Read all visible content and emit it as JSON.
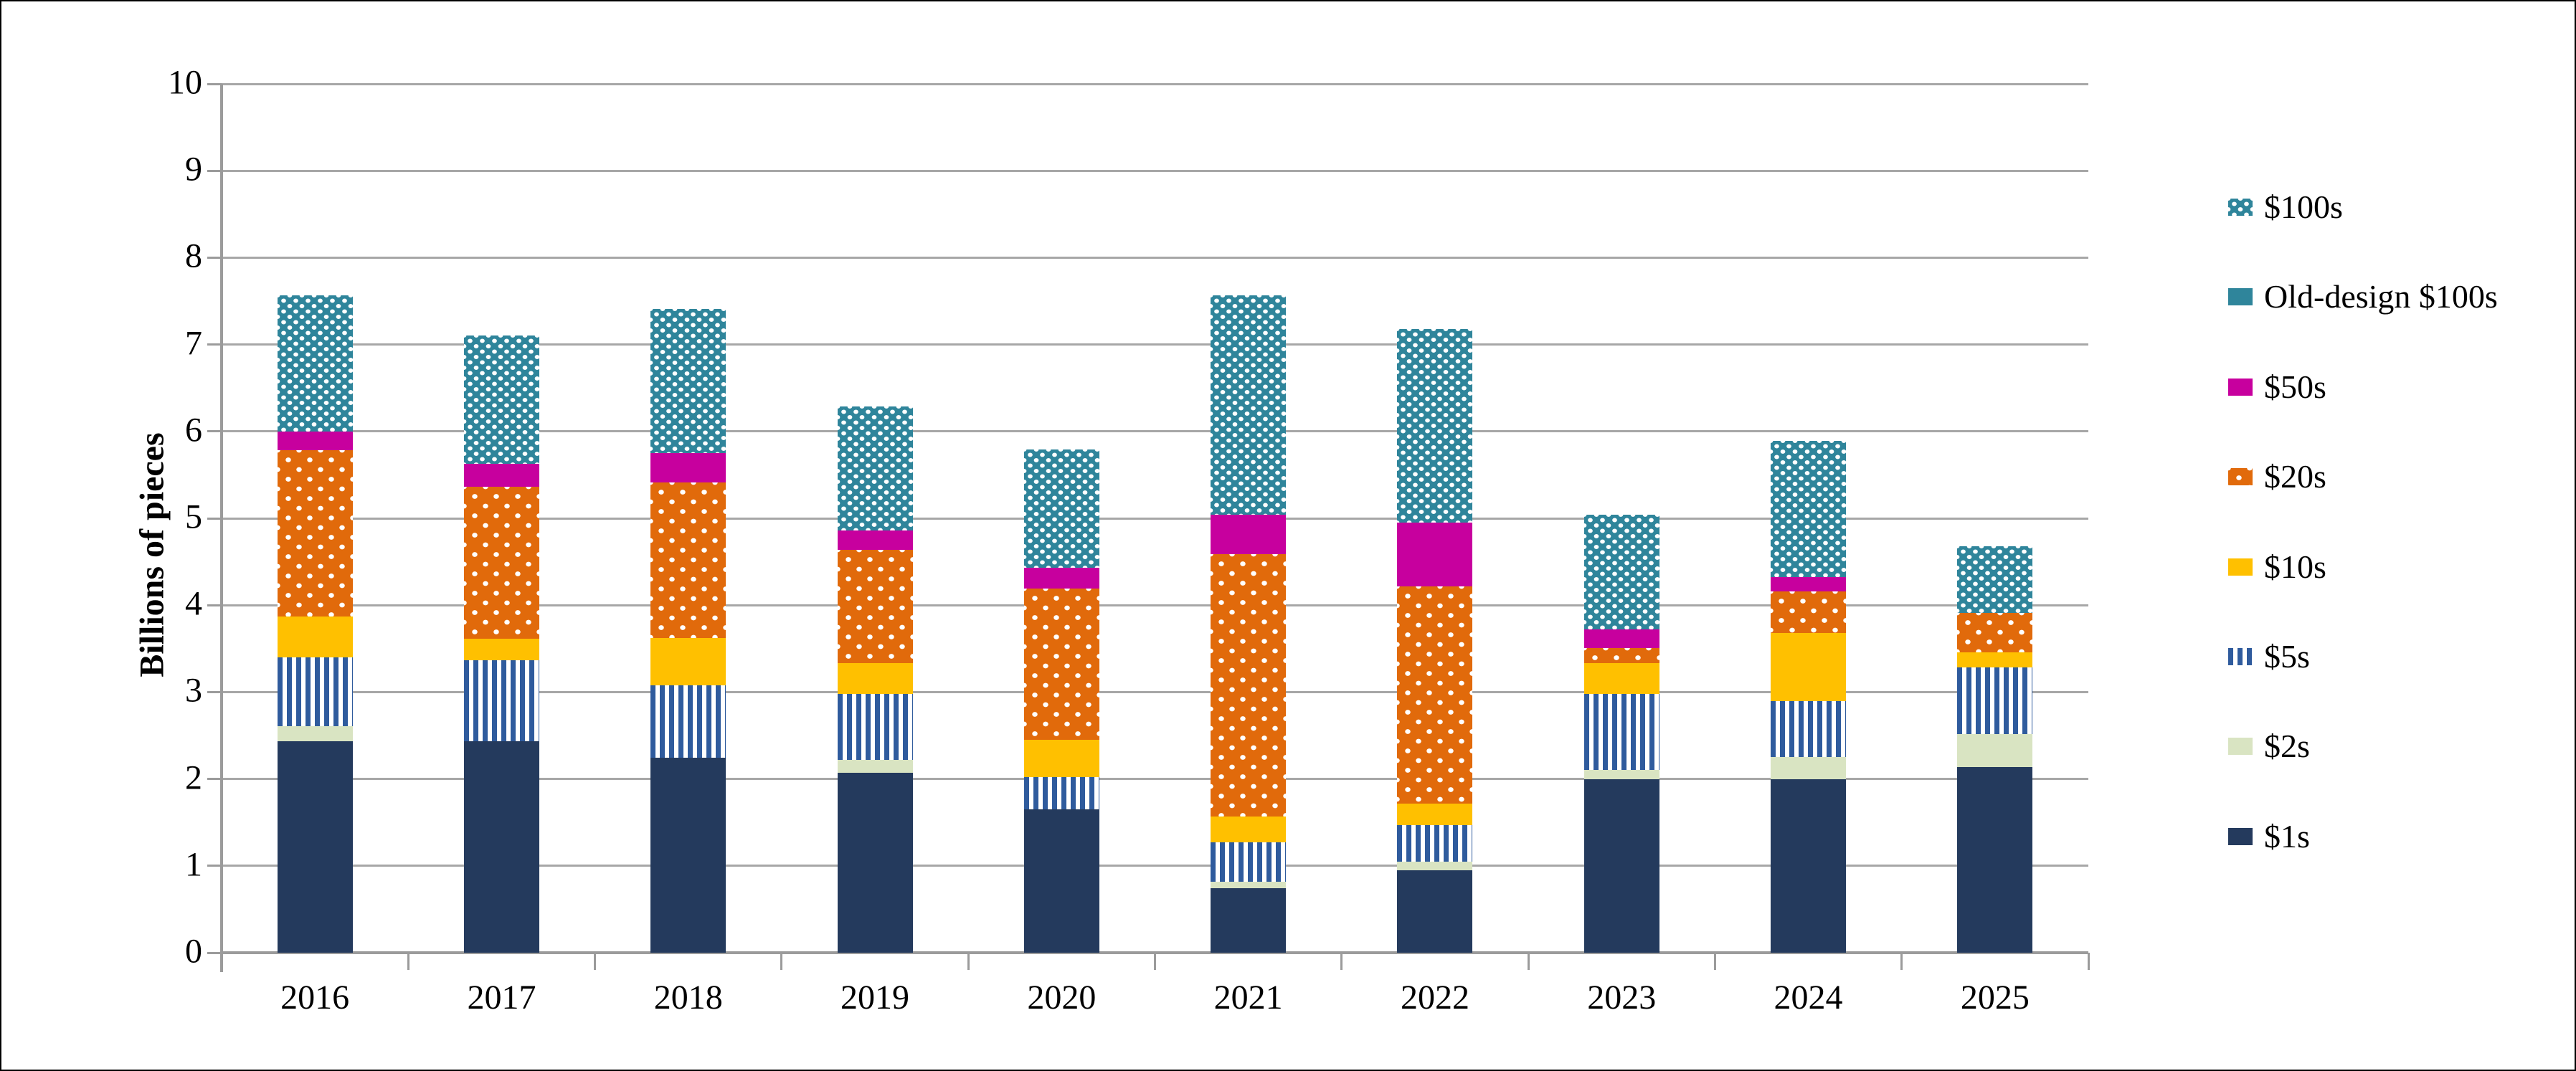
{
  "chart_data": {
    "type": "bar",
    "stacked": true,
    "title": "",
    "xlabel": "",
    "ylabel": "Billions of pieces",
    "ylim": [
      0,
      10
    ],
    "yticks": [
      0,
      1,
      2,
      3,
      4,
      5,
      6,
      7,
      8,
      9,
      10
    ],
    "grid": true,
    "legend_position": "right",
    "categories": [
      "2016",
      "2017",
      "2018",
      "2019",
      "2020",
      "2021",
      "2022",
      "2023",
      "2024",
      "2025"
    ],
    "series": [
      {
        "key": "s1",
        "name": "$1s",
        "color": "#243A5D",
        "pattern": "solid",
        "values": [
          2.43,
          2.43,
          2.24,
          2.07,
          1.65,
          0.74,
          0.95,
          2.0,
          2.0,
          2.14
        ]
      },
      {
        "key": "s2",
        "name": "$2s",
        "color": "#D9E4C2",
        "pattern": "solid",
        "values": [
          0.18,
          0.0,
          0.0,
          0.15,
          0.0,
          0.08,
          0.1,
          0.1,
          0.25,
          0.38
        ]
      },
      {
        "key": "s5",
        "name": "$5s",
        "color": "#2F5B9D",
        "pattern": "vstripes",
        "values": [
          0.79,
          0.94,
          0.84,
          0.76,
          0.37,
          0.45,
          0.42,
          0.88,
          0.65,
          0.76
        ]
      },
      {
        "key": "s10",
        "name": "$10s",
        "color": "#FFC000",
        "pattern": "solid",
        "values": [
          0.47,
          0.24,
          0.54,
          0.35,
          0.43,
          0.3,
          0.25,
          0.35,
          0.78,
          0.18
        ]
      },
      {
        "key": "s20",
        "name": "$20s",
        "color": "#E16A0B",
        "pattern": "dots-sparse",
        "values": [
          1.91,
          1.75,
          1.79,
          1.31,
          1.74,
          3.02,
          2.5,
          0.18,
          0.48,
          0.45
        ]
      },
      {
        "key": "s50",
        "name": "$50s",
        "color": "#C7009E",
        "pattern": "solid",
        "values": [
          0.22,
          0.27,
          0.34,
          0.22,
          0.24,
          0.45,
          0.73,
          0.21,
          0.16,
          0.0
        ]
      },
      {
        "key": "old100",
        "name": "Old-design $100s",
        "color": "#2F859B",
        "pattern": "solid",
        "values": [
          0.0,
          0.0,
          0.0,
          0.0,
          0.0,
          0.0,
          0.0,
          0.0,
          0.0,
          0.0
        ]
      },
      {
        "key": "s100",
        "name": "$100s",
        "color": "#2F859B",
        "pattern": "dots-dense",
        "values": [
          1.57,
          1.47,
          1.66,
          1.43,
          1.36,
          2.53,
          2.23,
          1.32,
          1.57,
          0.77
        ]
      }
    ],
    "totals": [
      7.57,
      7.1,
      7.41,
      6.29,
      5.79,
      7.57,
      7.18,
      5.04,
      5.89,
      4.68
    ],
    "legend_top_to_bottom": [
      "$100s",
      "Old-design $100s",
      "$50s",
      "$20s",
      "$10s",
      "$5s",
      "$2s",
      "$1s"
    ],
    "axis_color": "#9B9B9B",
    "gridline_color": "#A7A7A7"
  }
}
